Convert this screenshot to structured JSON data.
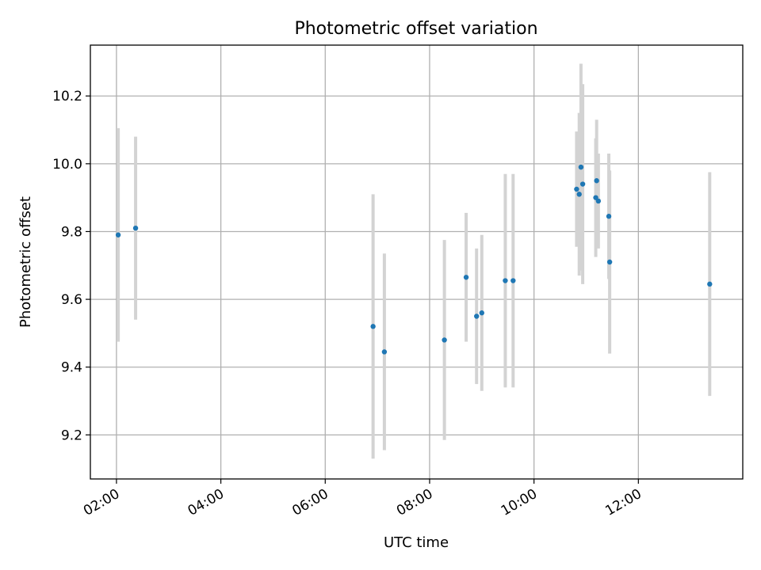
{
  "chart_data": {
    "type": "scatter",
    "title": "Photometric offset variation",
    "xlabel": "UTC time",
    "ylabel": "Photometric offset",
    "x_unit": "hours UTC",
    "xlim": [
      "01:30",
      "14:00"
    ],
    "ylim": [
      9.07,
      10.35
    ],
    "xticks": [
      "02:00",
      "04:00",
      "06:00",
      "08:00",
      "10:00",
      "12:00"
    ],
    "yticks": [
      "9.2",
      "9.4",
      "9.6",
      "9.8",
      "10.0",
      "10.2"
    ],
    "grid": true,
    "colors": {
      "point": "#1f77b4",
      "errorbar": "#d3d3d3"
    },
    "points": [
      {
        "x": "02:02",
        "y": 9.79,
        "err": 0.315
      },
      {
        "x": "02:22",
        "y": 9.81,
        "err": 0.27
      },
      {
        "x": "06:55",
        "y": 9.52,
        "err": 0.39
      },
      {
        "x": "07:08",
        "y": 9.445,
        "err": 0.29
      },
      {
        "x": "08:17",
        "y": 9.48,
        "err": 0.295
      },
      {
        "x": "08:42",
        "y": 9.665,
        "err": 0.19
      },
      {
        "x": "08:54",
        "y": 9.55,
        "err": 0.2
      },
      {
        "x": "09:00",
        "y": 9.56,
        "err": 0.23
      },
      {
        "x": "09:27",
        "y": 9.655,
        "err": 0.315
      },
      {
        "x": "09:36",
        "y": 9.655,
        "err": 0.315
      },
      {
        "x": "10:49",
        "y": 9.925,
        "err": 0.17
      },
      {
        "x": "10:52",
        "y": 9.91,
        "err": 0.24
      },
      {
        "x": "10:54",
        "y": 9.99,
        "err": 0.305
      },
      {
        "x": "10:56",
        "y": 9.94,
        "err": 0.295
      },
      {
        "x": "11:11",
        "y": 9.9,
        "err": 0.175
      },
      {
        "x": "11:12",
        "y": 9.95,
        "err": 0.18
      },
      {
        "x": "11:14",
        "y": 9.89,
        "err": 0.14
      },
      {
        "x": "11:26",
        "y": 9.845,
        "err": 0.185
      },
      {
        "x": "11:27",
        "y": 9.71,
        "err": 0.27
      },
      {
        "x": "13:22",
        "y": 9.645,
        "err": 0.33
      }
    ]
  }
}
